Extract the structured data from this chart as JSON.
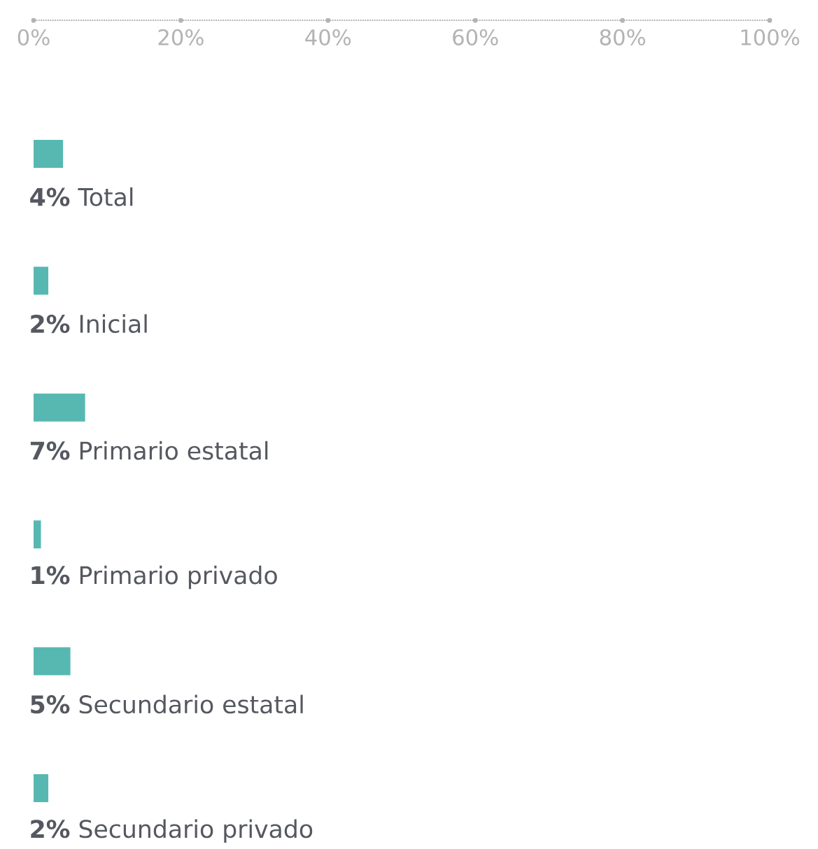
{
  "chart_data": {
    "type": "bar",
    "orientation": "horizontal",
    "categories": [
      "Total",
      "Inicial",
      "Primario estatal",
      "Primario privado",
      "Secundario estatal",
      "Secundario privado"
    ],
    "values": [
      4,
      2,
      7,
      1,
      5,
      2
    ],
    "value_labels": [
      "4%",
      "2%",
      "7%",
      "1%",
      "5%",
      "2%"
    ],
    "color": "#57b8b2",
    "xlim": [
      0,
      100
    ],
    "xticks": [
      {
        "value": 0,
        "label": "0%"
      },
      {
        "value": 20,
        "label": "20%"
      },
      {
        "value": 40,
        "label": "40%"
      },
      {
        "value": 60,
        "label": "60%"
      },
      {
        "value": 80,
        "label": "80%"
      },
      {
        "value": 100,
        "label": "100%"
      }
    ],
    "line_style": "dotted"
  }
}
